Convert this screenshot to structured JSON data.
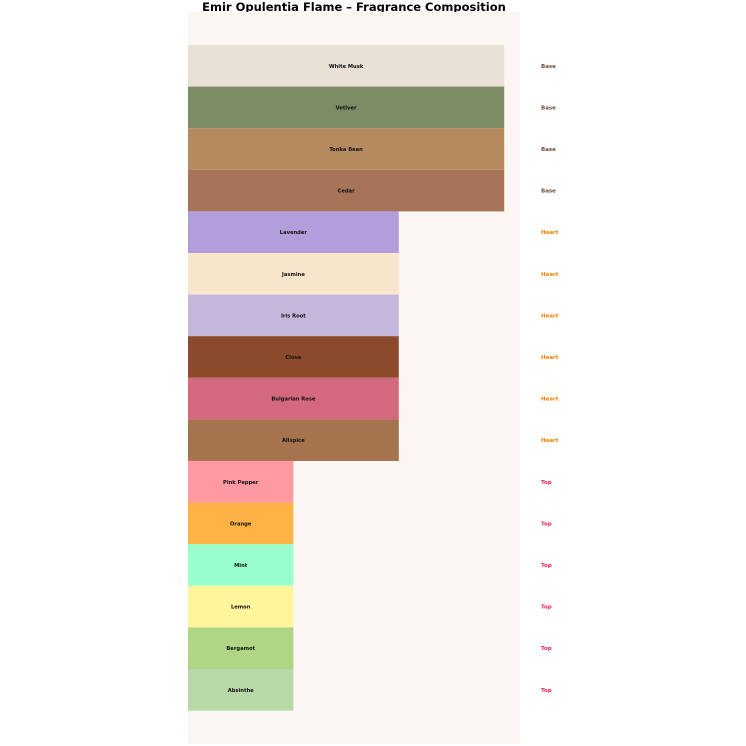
{
  "chart_data": {
    "type": "bar",
    "orientation": "horizontal",
    "title": "Emir Opulentia Flame – Fragrance Composition",
    "xlabel": "",
    "ylabel": "",
    "xlim": [
      0,
      3.15
    ],
    "grid": false,
    "axes_visible": false,
    "background": "#faf7f2",
    "tier_colors": {
      "Base": "#6d4c41",
      "Heart": "#f57c00",
      "Top": "#e91e63"
    },
    "notes": [
      {
        "name": "White Musk",
        "tier": "Base",
        "value": 3,
        "color": "#e8e0d5"
      },
      {
        "name": "Vetiver",
        "tier": "Base",
        "value": 3,
        "color": "#7b8b63"
      },
      {
        "name": "Tonka Bean",
        "tier": "Base",
        "value": 3,
        "color": "#b58a5e"
      },
      {
        "name": "Cedar",
        "tier": "Base",
        "value": 3,
        "color": "#a87459"
      },
      {
        "name": "Lavender",
        "tier": "Heart",
        "value": 2,
        "color": "#b39ddb"
      },
      {
        "name": "Jasmine",
        "tier": "Heart",
        "value": 2,
        "color": "#f7e6cc"
      },
      {
        "name": "Iris Root",
        "tier": "Heart",
        "value": 2,
        "color": "#c5b7db"
      },
      {
        "name": "Clove",
        "tier": "Heart",
        "value": 2,
        "color": "#8b4a2b"
      },
      {
        "name": "Bulgarian Rose",
        "tier": "Heart",
        "value": 2,
        "color": "#d4697d"
      },
      {
        "name": "Allspice",
        "tier": "Heart",
        "value": 2,
        "color": "#a6734f"
      },
      {
        "name": "Pink Pepper",
        "tier": "Top",
        "value": 1,
        "color": "#ff9aa2"
      },
      {
        "name": "Orange",
        "tier": "Top",
        "value": 1,
        "color": "#ffb347"
      },
      {
        "name": "Mint",
        "tier": "Top",
        "value": 1,
        "color": "#98ffcc"
      },
      {
        "name": "Lemon",
        "tier": "Top",
        "value": 1,
        "color": "#fff59d"
      },
      {
        "name": "Bergamot",
        "tier": "Top",
        "value": 1,
        "color": "#b0d685"
      },
      {
        "name": "Absinthe",
        "tier": "Top",
        "value": 1,
        "color": "#b8d8a8"
      }
    ]
  }
}
